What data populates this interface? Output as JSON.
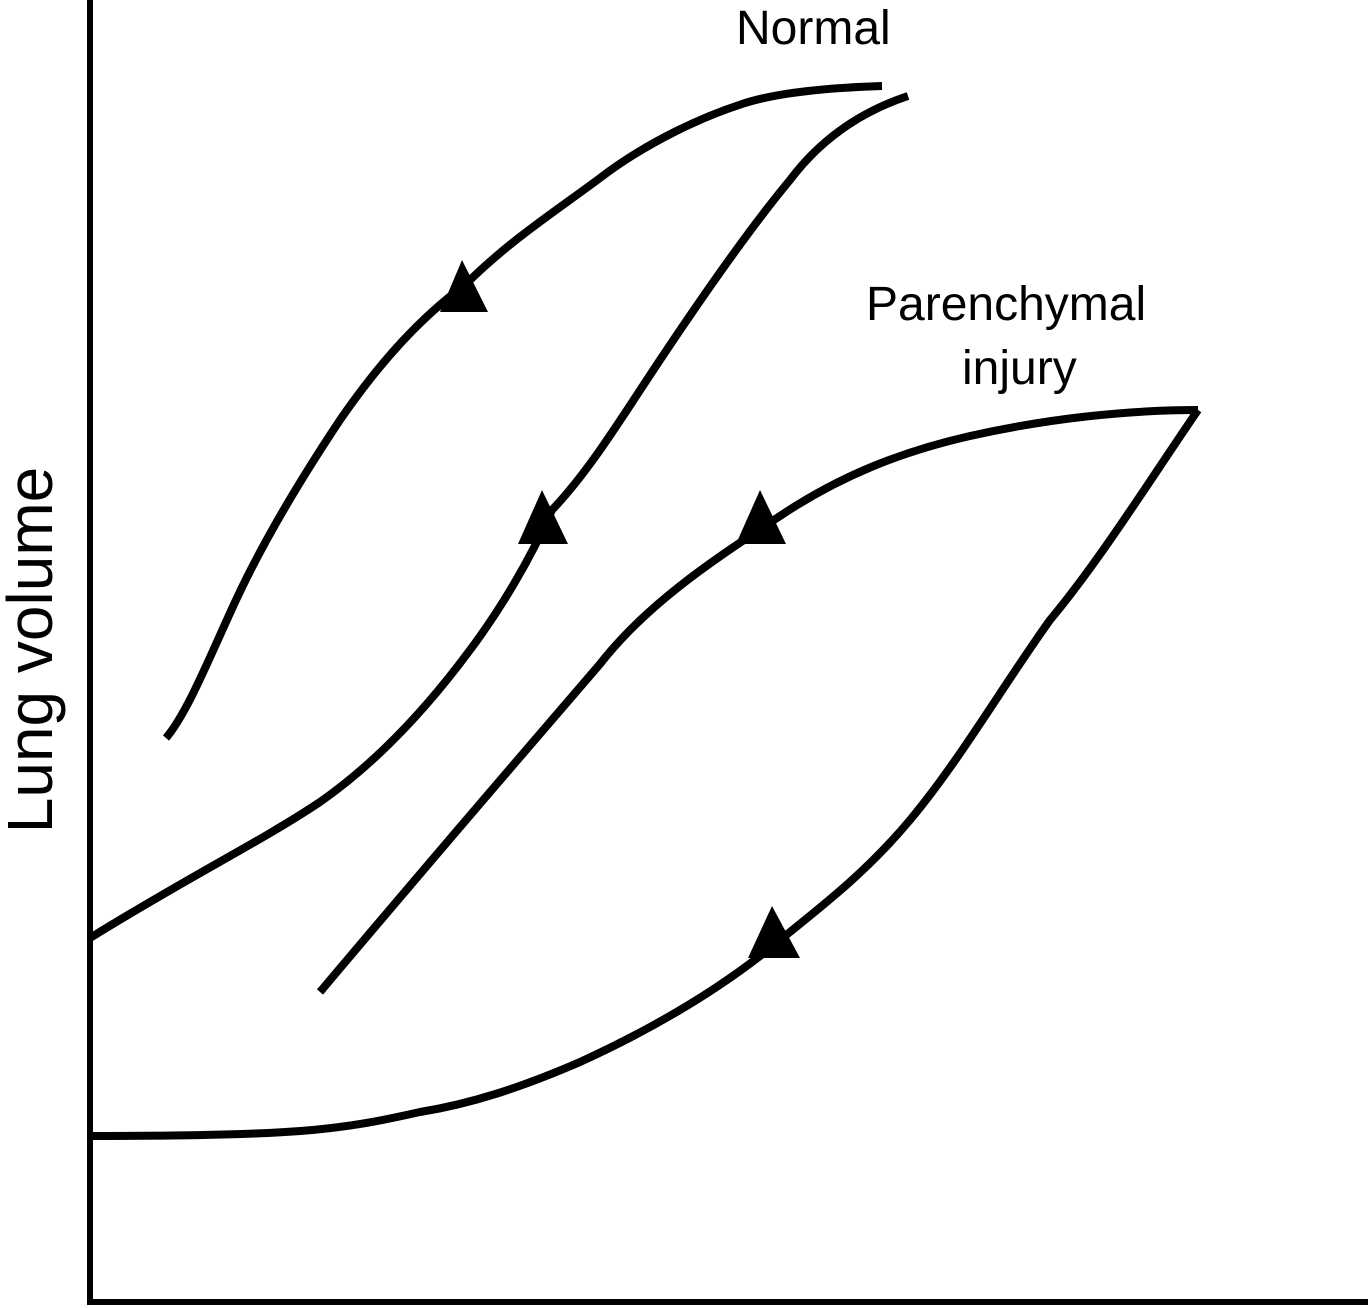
{
  "figure": {
    "y_axis_label": "Lung volume",
    "x_axis_label": "",
    "normal_label": "Normal",
    "injury_label_line1": "Parenchymal",
    "injury_label_line2": "injury",
    "curve_color": "#000000",
    "background_color": "#ffffff"
  }
}
